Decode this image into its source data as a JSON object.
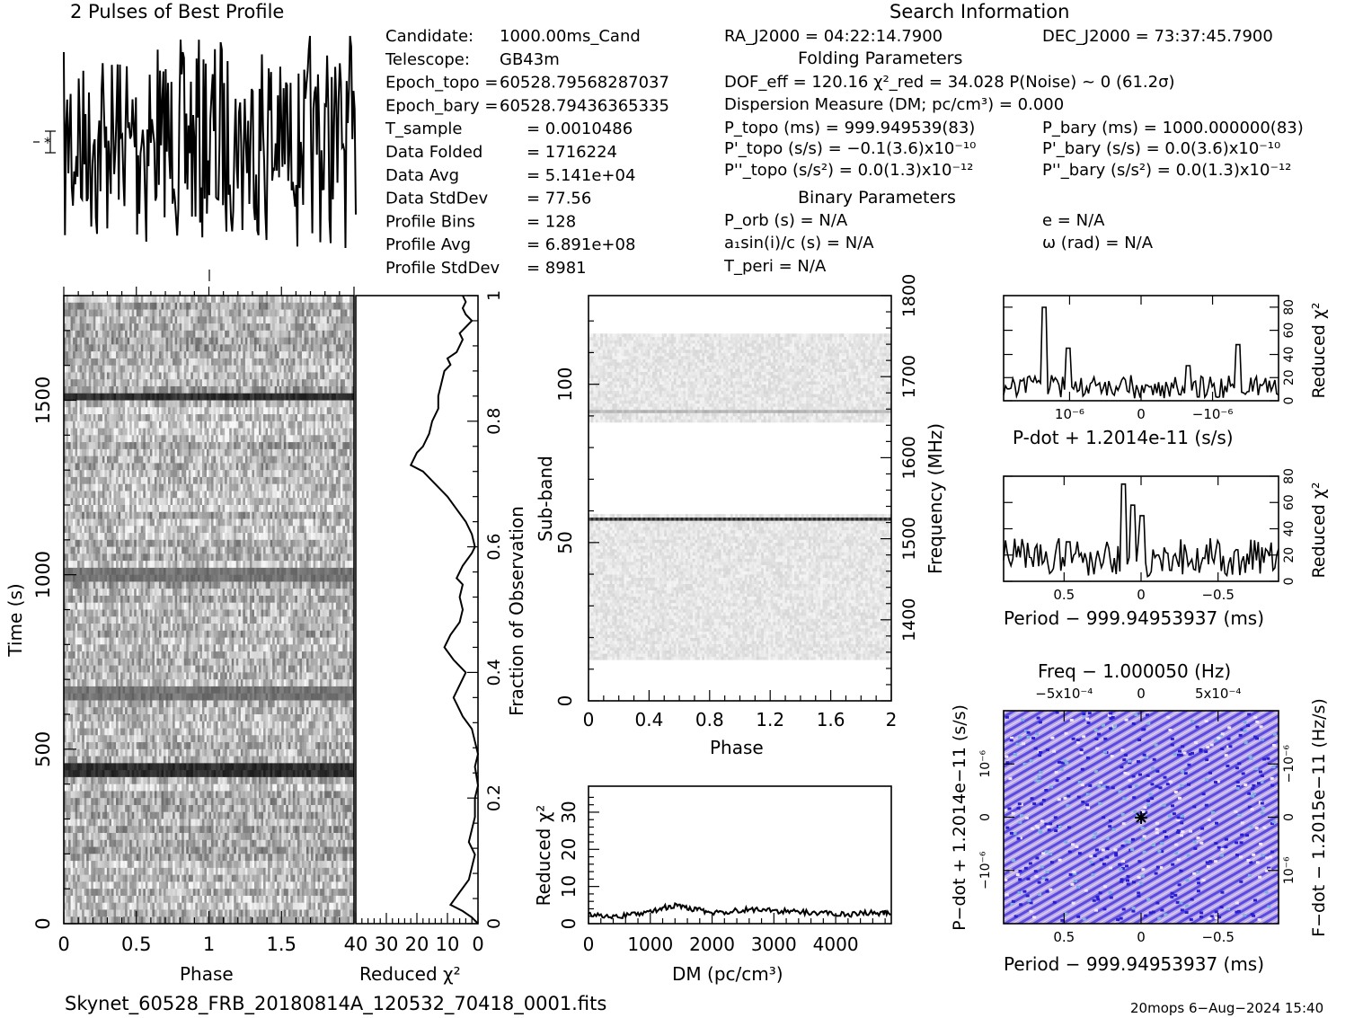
{
  "header": {
    "profile_title": "2 Pulses of Best Profile",
    "search_title": "Search Information",
    "folding_title": "Folding Parameters",
    "binary_title": "Binary Parameters"
  },
  "info_left": [
    {
      "label": "Candidate:",
      "value": "1000.00ms_Cand"
    },
    {
      "label": "Telescope:",
      "value": "GB43m"
    },
    {
      "label": "Epoch_topo =",
      "value": "60528.79568287037"
    },
    {
      "label": "Epoch_bary =",
      "value": "60528.79436365335"
    },
    {
      "label": "T_sample",
      "value": "= 0.0010486"
    },
    {
      "label": "Data Folded",
      "value": "= 1716224"
    },
    {
      "label": "Data Avg",
      "value": "= 5.141e+04"
    },
    {
      "label": "Data StdDev",
      "value": "= 77.56"
    },
    {
      "label": "Profile Bins",
      "value": "= 128"
    },
    {
      "label": "Profile Avg",
      "value": "= 6.891e+08"
    },
    {
      "label": "Profile StdDev",
      "value": "= 8981"
    }
  ],
  "search": {
    "ra": "RA_J2000 = 04:22:14.7900",
    "dec": "DEC_J2000 = 73:37:45.7900"
  },
  "folding": {
    "dof_line": "DOF_eff = 120.16  χ²_red = 34.028  P(Noise) ~ 0   (61.2σ)",
    "dm_line": "Dispersion Measure (DM; pc/cm³) = 0.000",
    "ptopo": "P_topo (ms) =  999.949539(83)",
    "pbary": "P_bary (ms) =  1000.000000(83)",
    "pdtopo": "P'_topo (s/s) = −0.1(3.6)x10⁻¹⁰",
    "pdbary": "P'_bary (s/s) = 0.0(3.6)x10⁻¹⁰",
    "pddtopo": "P''_topo (s/s²) = 0.0(1.3)x10⁻¹²",
    "pddbary": "P''_bary (s/s²) = 0.0(1.3)x10⁻¹²"
  },
  "binary": {
    "porb": "P_orb (s) = N/A",
    "asini": "a₁sin(i)/c (s) = N/A",
    "tperi": "T_peri = N/A",
    "ecc": "e = N/A",
    "omega": "ω (rad) = N/A"
  },
  "footer": {
    "filename": "Skynet_60528_FRB_20180814A_120532_70418_0001.fits",
    "stamp": "20mops   6−Aug−2024 15:40"
  },
  "chart_data": [
    {
      "id": "profile",
      "type": "line",
      "title": "2 Pulses of Best Profile",
      "x_range": [
        0,
        2
      ],
      "description_values": "noisy folded profile, 256 points (2 pulses x 128 bins)"
    },
    {
      "id": "time_phase",
      "type": "heatmap",
      "xlabel": "Phase",
      "ylabel": "Time (s)",
      "xlim": [
        0,
        2
      ],
      "ylim": [
        0,
        1800
      ],
      "xticks": [
        "0",
        "0.5",
        "1",
        "1.5"
      ],
      "yticks": [
        "0",
        "500",
        "1000",
        "1500"
      ],
      "dark_rows_time_s": [
        440,
        1505,
        1000,
        660
      ]
    },
    {
      "id": "time_chi2",
      "type": "line",
      "xlabel": "Reduced χ²",
      "ylabel": "Fraction of Observation",
      "xlim": [
        40,
        0
      ],
      "ylim": [
        0,
        1
      ],
      "xticks": [
        "40",
        "30",
        "20",
        "10",
        "0"
      ],
      "yticks": [
        "0",
        "0.2",
        "0.4",
        "0.6",
        "0.8",
        "1"
      ],
      "points": [
        [
          0,
          0
        ],
        [
          2,
          0.01
        ],
        [
          5,
          0.02
        ],
        [
          9,
          0.03
        ],
        [
          6,
          0.05
        ],
        [
          3,
          0.07
        ],
        [
          2,
          0.09
        ],
        [
          1,
          0.11
        ],
        [
          3,
          0.13
        ],
        [
          2,
          0.15
        ],
        [
          1,
          0.17
        ],
        [
          1,
          0.2
        ],
        [
          0,
          0.22
        ],
        [
          1,
          0.25
        ],
        [
          0,
          0.27
        ],
        [
          1,
          0.29
        ],
        [
          2,
          0.31
        ],
        [
          5,
          0.33
        ],
        [
          8,
          0.36
        ],
        [
          6,
          0.38
        ],
        [
          4,
          0.4
        ],
        [
          8,
          0.42
        ],
        [
          11,
          0.44
        ],
        [
          9,
          0.46
        ],
        [
          6,
          0.48
        ],
        [
          5,
          0.5
        ],
        [
          6,
          0.52
        ],
        [
          5,
          0.54
        ],
        [
          7,
          0.55
        ],
        [
          5,
          0.57
        ],
        [
          2,
          0.59
        ],
        [
          1,
          0.6
        ],
        [
          2,
          0.62
        ],
        [
          4,
          0.64
        ],
        [
          7,
          0.66
        ],
        [
          10,
          0.68
        ],
        [
          14,
          0.7
        ],
        [
          18,
          0.72
        ],
        [
          22,
          0.73
        ],
        [
          20,
          0.75
        ],
        [
          18,
          0.76
        ],
        [
          16,
          0.78
        ],
        [
          15,
          0.8
        ],
        [
          13,
          0.82
        ],
        [
          13,
          0.84
        ],
        [
          12,
          0.86
        ],
        [
          11,
          0.88
        ],
        [
          9,
          0.89
        ],
        [
          10,
          0.9
        ],
        [
          7,
          0.91
        ],
        [
          6,
          0.92
        ],
        [
          5,
          0.93
        ],
        [
          6,
          0.94
        ],
        [
          4,
          0.95
        ],
        [
          2,
          0.96
        ],
        [
          4,
          0.97
        ],
        [
          5,
          0.98
        ],
        [
          4,
          0.99
        ],
        [
          5,
          1.0
        ]
      ]
    },
    {
      "id": "subband_phase",
      "type": "heatmap",
      "xlabel": "Phase",
      "ylabel": "Sub-band",
      "ylabel_right": "Frequency (MHz)",
      "xlim": [
        0,
        2
      ],
      "ylim": [
        0,
        128
      ],
      "y2lim": [
        1300,
        1800
      ],
      "xticks": [
        "0",
        "0.4",
        "0.8",
        "1.2",
        "1.6",
        "2"
      ],
      "yticks": [
        "0",
        "50",
        "100"
      ],
      "y2ticks": [
        "1400",
        "1500",
        "1600",
        "1700",
        "1800"
      ],
      "active_subbands": [
        [
          13,
          58
        ],
        [
          88,
          115
        ]
      ],
      "dark_subband": 57
    },
    {
      "id": "dm_chi2",
      "type": "line",
      "xlabel": "DM (pc/cm³)",
      "ylabel": "Reduced χ²",
      "xlim": [
        0,
        4900
      ],
      "ylim": [
        0,
        37
      ],
      "xticks": [
        "0",
        "1000",
        "2000",
        "3000",
        "4000"
      ],
      "yticks": [
        "0",
        "10",
        "20",
        "30"
      ],
      "points": [
        [
          0,
          2.8
        ],
        [
          250,
          2.0
        ],
        [
          500,
          2.1
        ],
        [
          750,
          2.4
        ],
        [
          1000,
          3.3
        ],
        [
          1200,
          4.2
        ],
        [
          1400,
          4.9
        ],
        [
          1600,
          4.2
        ],
        [
          1800,
          3.6
        ],
        [
          2000,
          2.9
        ],
        [
          2250,
          3.2
        ],
        [
          2500,
          3.8
        ],
        [
          2750,
          3.8
        ],
        [
          3000,
          3.5
        ],
        [
          3250,
          3.3
        ],
        [
          3500,
          3.1
        ],
        [
          3750,
          2.9
        ],
        [
          4000,
          2.6
        ],
        [
          4250,
          2.5
        ],
        [
          4500,
          2.9
        ],
        [
          4750,
          2.8
        ],
        [
          4900,
          3.0
        ]
      ]
    },
    {
      "id": "pdot_chi2",
      "type": "line",
      "xlabel": "P-dot + 1.2014e-11 (s/s)",
      "ylabel": "Reduced χ²",
      "ylim": [
        0,
        90
      ],
      "xticks": [
        "10⁻⁶",
        "0",
        "−10⁻⁶"
      ],
      "yticks": [
        "0",
        "20",
        "40",
        "60",
        "80"
      ]
    },
    {
      "id": "period_chi2",
      "type": "line",
      "xlabel": "Period − 999.94953937 (ms)",
      "ylabel": "Reduced χ²",
      "ylim": [
        0,
        80
      ],
      "xticks": [
        "0.5",
        "0",
        "−0.5"
      ],
      "yticks": [
        "0",
        "20",
        "40",
        "60",
        "80"
      ]
    },
    {
      "id": "p_pdot",
      "type": "heatmap",
      "title_top": "Freq − 1.000050 (Hz)",
      "xlabel": "Period − 999.94953937 (ms)",
      "ylabel": "P−dot + 1.2014e−11 (s/s)",
      "ylabel_right": "F−dot − 1.2015e−11 (Hz/s)",
      "xticks": [
        "0.5",
        "0",
        "−0.5"
      ],
      "xticks_top": [
        "−5x10⁻⁴",
        "0",
        "5x10⁻⁴"
      ],
      "yticks": [
        "10⁻⁶",
        "0",
        "−10⁻⁶"
      ],
      "yticks_right": [
        "−10⁻⁶",
        "0",
        "10⁻⁶"
      ]
    }
  ]
}
